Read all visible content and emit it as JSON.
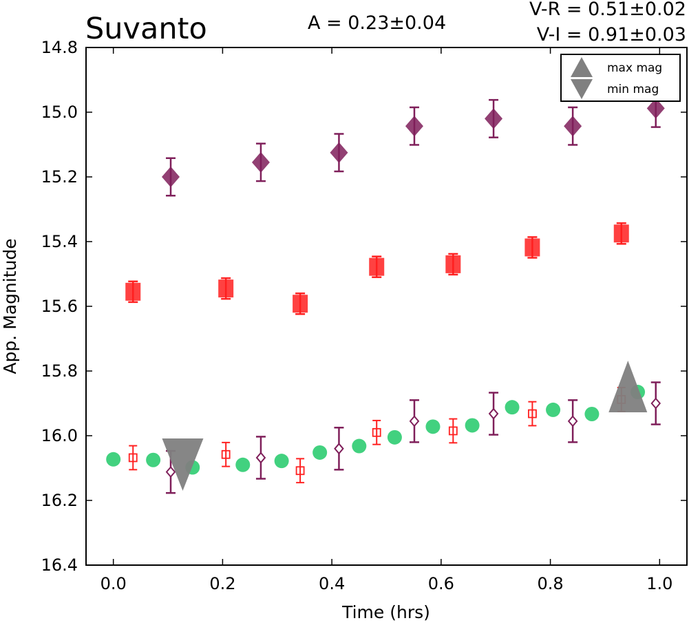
{
  "chart_data": {
    "type": "scatter",
    "title": "Suvanto",
    "annotations": {
      "amplitude": "A  = 0.23±0.04",
      "color_vr": "V-R = 0.51±0.02",
      "color_vi": "V-I  = 0.91±0.03"
    },
    "xlabel": "Time (hrs)",
    "ylabel": "App. Magnitude",
    "xlim": [
      -0.05,
      1.05
    ],
    "ylim": [
      16.4,
      14.8
    ],
    "y_axis_inverted": true,
    "grid": false,
    "x_ticks": [
      "0.0",
      "0.2",
      "0.4",
      "0.6",
      "0.8",
      "1.0"
    ],
    "y_ticks": [
      "14.8",
      "15.0",
      "15.2",
      "15.4",
      "15.6",
      "15.8",
      "16.0",
      "16.2",
      "16.4"
    ],
    "legend": {
      "position": "top-right",
      "entries": [
        {
          "label": "max mag",
          "marker": "triangle-up",
          "color": "#808080"
        },
        {
          "label": "min mag",
          "marker": "triangle-down",
          "color": "#808080"
        }
      ]
    },
    "series": [
      {
        "marker": "diamond-filled",
        "color": "#7f1f5a",
        "points": [
          {
            "x": 0.105,
            "y": 15.2,
            "err": 0.058
          },
          {
            "x": 0.27,
            "y": 15.155,
            "err": 0.058
          },
          {
            "x": 0.413,
            "y": 15.125,
            "err": 0.058
          },
          {
            "x": 0.551,
            "y": 15.043,
            "err": 0.058
          },
          {
            "x": 0.696,
            "y": 15.02,
            "err": 0.058
          },
          {
            "x": 0.841,
            "y": 15.043,
            "err": 0.058
          },
          {
            "x": 0.993,
            "y": 14.988,
            "err": 0.058
          }
        ]
      },
      {
        "marker": "square-filled",
        "color": "#ff2020",
        "points": [
          {
            "x": 0.036,
            "y": 15.555,
            "err": 0.032
          },
          {
            "x": 0.206,
            "y": 15.545,
            "err": 0.032
          },
          {
            "x": 0.342,
            "y": 15.592,
            "err": 0.032
          },
          {
            "x": 0.482,
            "y": 15.478,
            "err": 0.032
          },
          {
            "x": 0.622,
            "y": 15.47,
            "err": 0.032
          },
          {
            "x": 0.767,
            "y": 15.418,
            "err": 0.032
          },
          {
            "x": 0.93,
            "y": 15.375,
            "err": 0.032
          }
        ]
      },
      {
        "marker": "circle-filled",
        "color": "#2ecc71",
        "points": [
          {
            "x": 0.0,
            "y": 16.073
          },
          {
            "x": 0.073,
            "y": 16.075
          },
          {
            "x": 0.145,
            "y": 16.098
          },
          {
            "x": 0.237,
            "y": 16.09
          },
          {
            "x": 0.308,
            "y": 16.078
          },
          {
            "x": 0.378,
            "y": 16.052
          },
          {
            "x": 0.45,
            "y": 16.032
          },
          {
            "x": 0.515,
            "y": 16.005
          },
          {
            "x": 0.585,
            "y": 15.972
          },
          {
            "x": 0.657,
            "y": 15.968
          },
          {
            "x": 0.73,
            "y": 15.912
          },
          {
            "x": 0.805,
            "y": 15.92
          },
          {
            "x": 0.876,
            "y": 15.933
          },
          {
            "x": 0.96,
            "y": 15.865
          }
        ]
      },
      {
        "marker": "square-open",
        "color": "#ff2020",
        "points": [
          {
            "x": 0.036,
            "y": 16.068,
            "err": 0.037
          },
          {
            "x": 0.206,
            "y": 16.058,
            "err": 0.037
          },
          {
            "x": 0.342,
            "y": 16.108,
            "err": 0.037
          },
          {
            "x": 0.482,
            "y": 15.99,
            "err": 0.037
          },
          {
            "x": 0.622,
            "y": 15.985,
            "err": 0.037
          },
          {
            "x": 0.767,
            "y": 15.932,
            "err": 0.037
          },
          {
            "x": 0.93,
            "y": 15.888,
            "err": 0.037
          }
        ]
      },
      {
        "marker": "diamond-open",
        "color": "#7f1f5a",
        "points": [
          {
            "x": 0.105,
            "y": 16.112,
            "err": 0.065
          },
          {
            "x": 0.27,
            "y": 16.068,
            "err": 0.065
          },
          {
            "x": 0.413,
            "y": 16.04,
            "err": 0.065
          },
          {
            "x": 0.551,
            "y": 15.955,
            "err": 0.065
          },
          {
            "x": 0.696,
            "y": 15.932,
            "err": 0.065
          },
          {
            "x": 0.841,
            "y": 15.955,
            "err": 0.065
          },
          {
            "x": 0.993,
            "y": 15.9,
            "err": 0.065
          }
        ]
      },
      {
        "marker": "triangle-down",
        "color": "#808080",
        "points": [
          {
            "x": 0.127,
            "y": 16.1
          }
        ]
      },
      {
        "marker": "triangle-up",
        "color": "#808080",
        "points": [
          {
            "x": 0.942,
            "y": 15.885
          }
        ]
      }
    ]
  }
}
